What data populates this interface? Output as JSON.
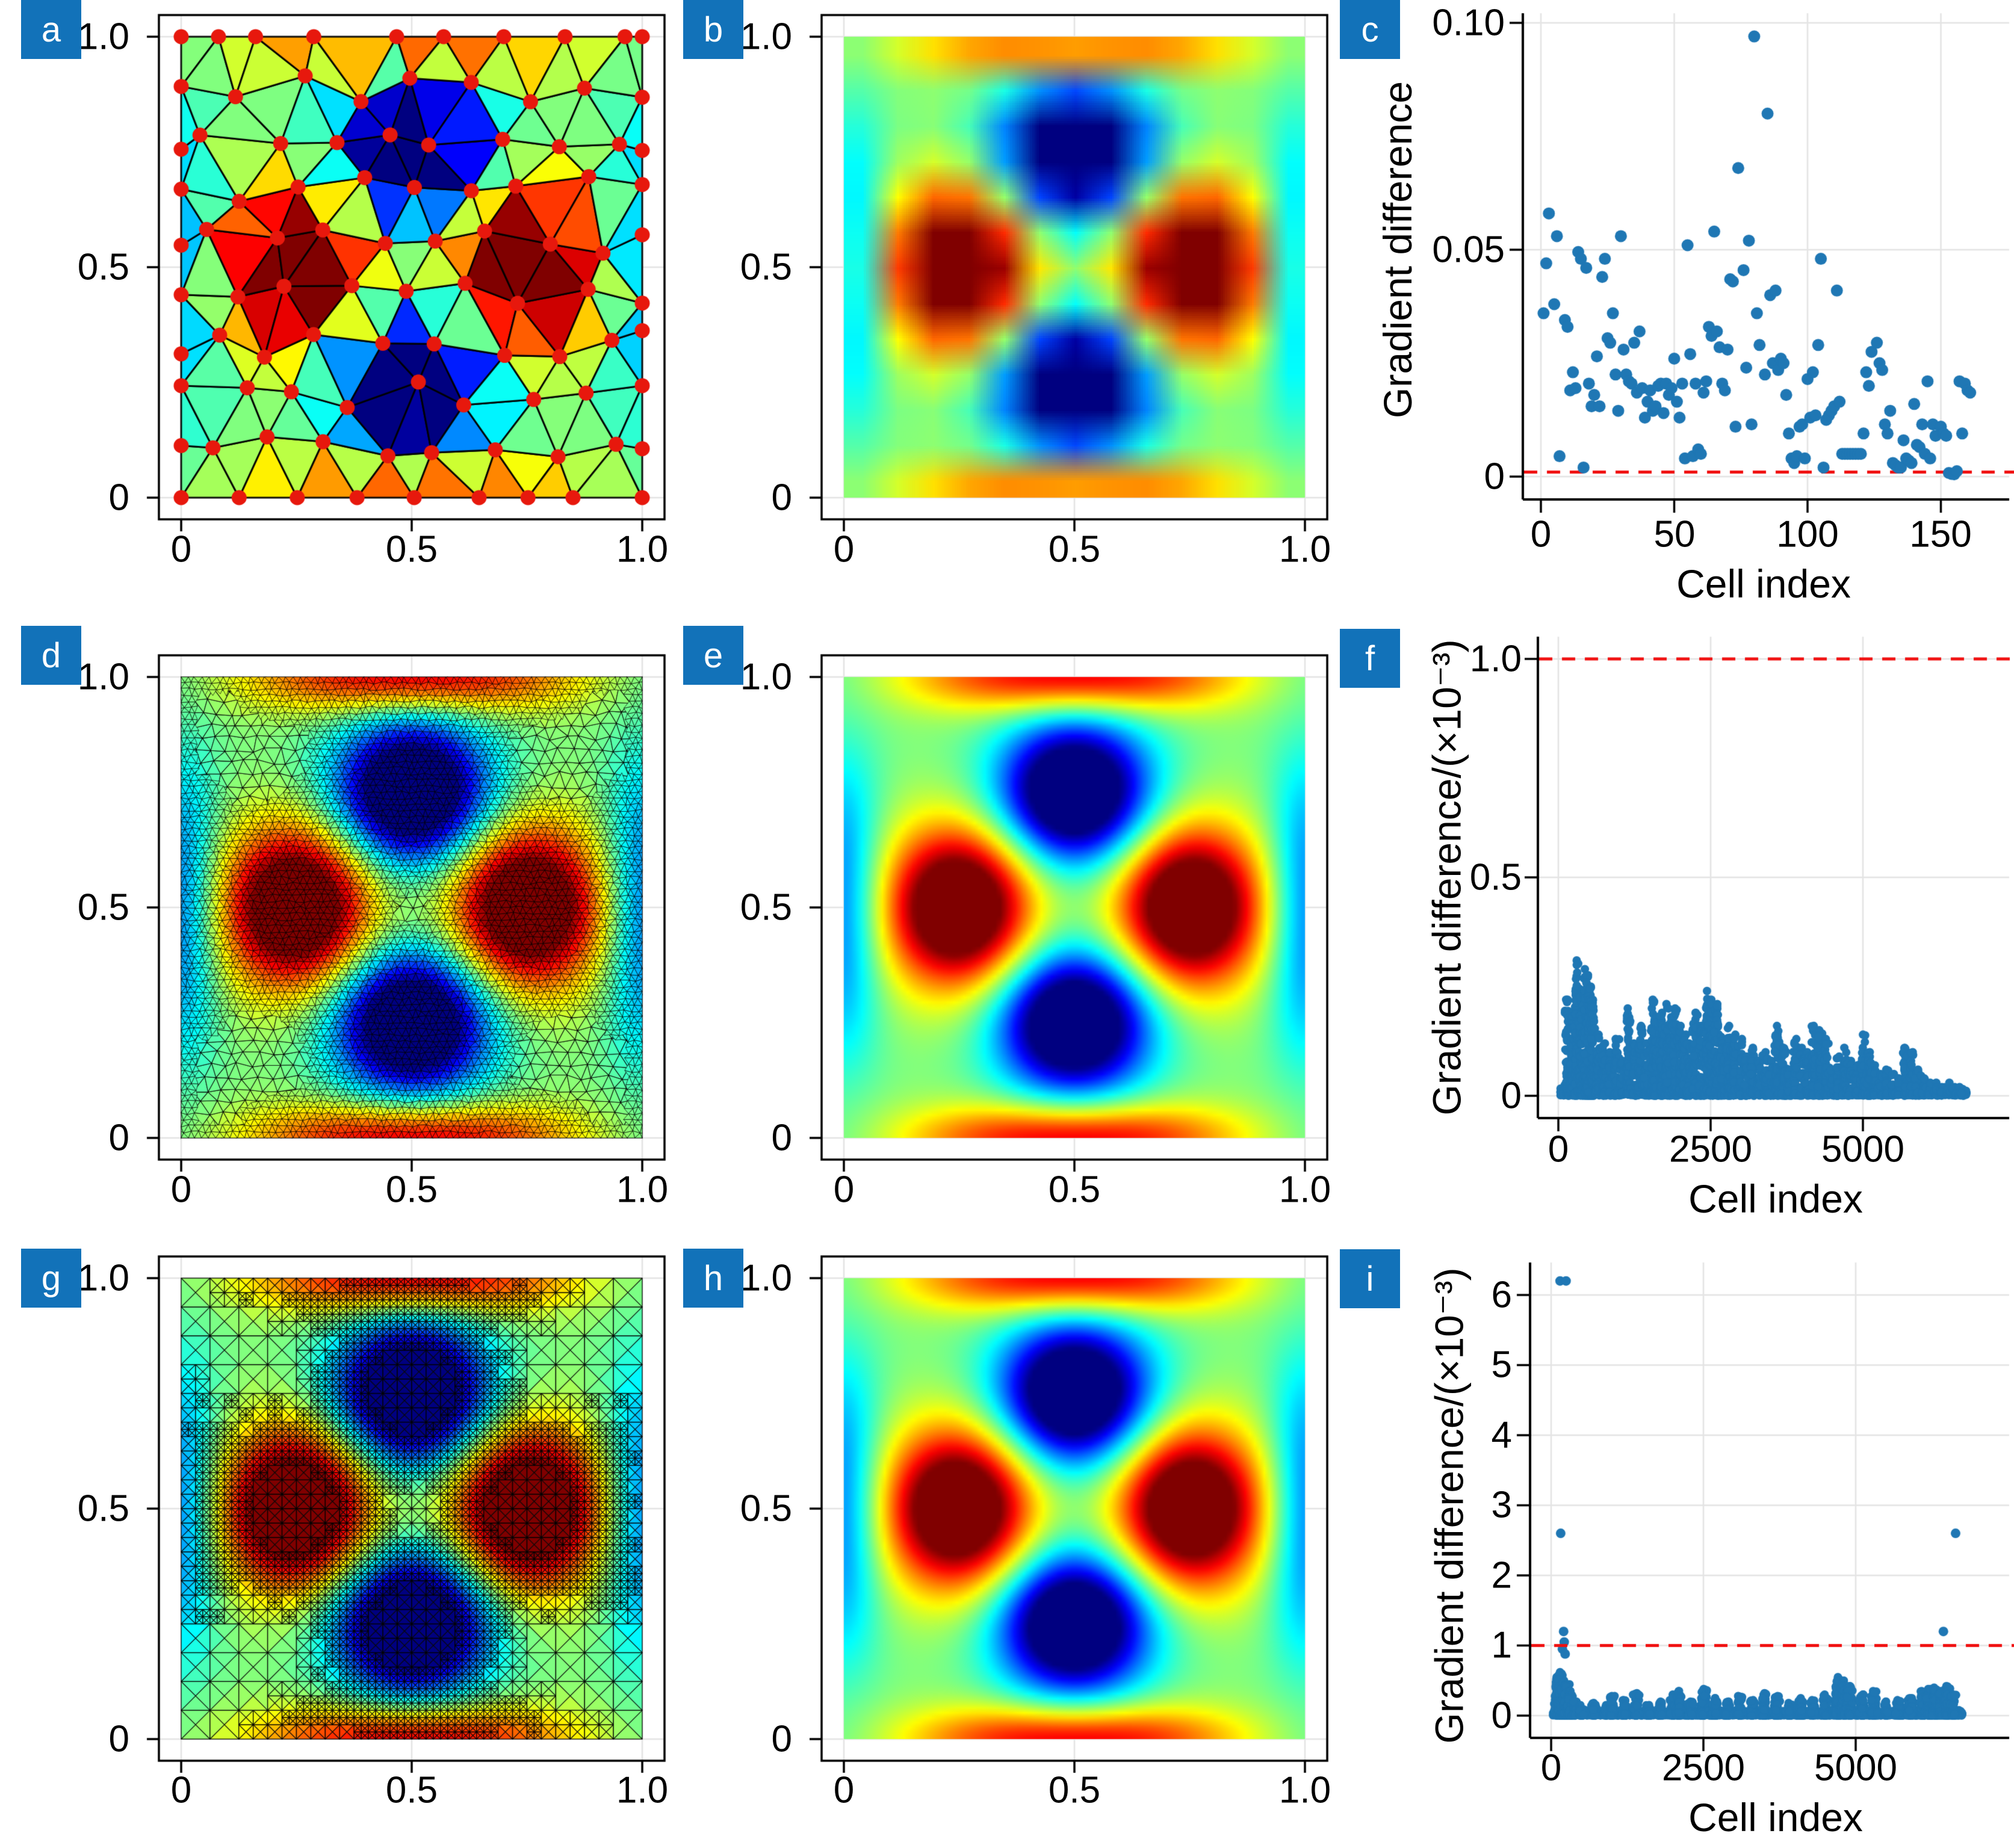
{
  "figure": {
    "panel_letter_bg": "#1272b9",
    "panel_letter_color": "#ffffff",
    "marker_color": "#1f77b4",
    "threshold_color": "#f01010",
    "colormap": "jet"
  },
  "chart_data": [
    {
      "id": "a",
      "panel_label": "a",
      "type": "heatmap",
      "subtype": "coarse-triangular-mesh-with-vertex-nodes",
      "field": "four-lobe pattern: red maxima at (0.25,0.5) and (0.75,0.5), blue minima at (0.5,0.25) and (0.5,0.75), warm bands along y=0 and y=1 edges",
      "colormap": "jet",
      "xlim": [
        0,
        1
      ],
      "ylim": [
        0,
        1
      ],
      "xticks": [
        "0",
        "0.5",
        "1.0"
      ],
      "yticks": [
        "1.0",
        "0.5",
        "0"
      ],
      "mesh": {
        "node_color": "#e7180d",
        "edge_color": "#000000",
        "approx_cells": 160,
        "vertex_dots": true
      }
    },
    {
      "id": "b",
      "panel_label": "b",
      "type": "heatmap",
      "subtype": "smooth-interpolated-coarse",
      "field": "same four-lobe pattern interpolated from coarse mesh",
      "colormap": "jet",
      "xlim": [
        0,
        1
      ],
      "ylim": [
        0,
        1
      ],
      "xticks": [
        "0",
        "0.5",
        "1.0"
      ],
      "yticks": [
        "1.0",
        "0.5",
        "0"
      ]
    },
    {
      "id": "c",
      "panel_label": "c",
      "type": "scatter",
      "xlabel": "Cell index",
      "ylabel": "Gradient difference",
      "xticks": [
        "0",
        "50",
        "100",
        "150"
      ],
      "yticks": [
        "0.10",
        "0.05",
        "0"
      ],
      "xlim": [
        0,
        165
      ],
      "ylim": [
        0,
        0.1
      ],
      "threshold": {
        "y": 0.001,
        "style": "dashed"
      },
      "points": [
        [
          1,
          0.036
        ],
        [
          2,
          0.047
        ],
        [
          3,
          0.058
        ],
        [
          5,
          0.038
        ],
        [
          6,
          0.053
        ],
        [
          7,
          0.0045
        ],
        [
          9,
          0.0345
        ],
        [
          10,
          0.033
        ],
        [
          11,
          0.019
        ],
        [
          12,
          0.023
        ],
        [
          13,
          0.0195
        ],
        [
          14,
          0.0495
        ],
        [
          15,
          0.048
        ],
        [
          16,
          0.002
        ],
        [
          17,
          0.046
        ],
        [
          18,
          0.0205
        ],
        [
          19,
          0.0155
        ],
        [
          20,
          0.018
        ],
        [
          21,
          0.0265
        ],
        [
          22,
          0.0155
        ],
        [
          23,
          0.044
        ],
        [
          24,
          0.048
        ],
        [
          25,
          0.0305
        ],
        [
          26,
          0.0295
        ],
        [
          27,
          0.036
        ],
        [
          28,
          0.0225
        ],
        [
          29,
          0.0145
        ],
        [
          30,
          0.053
        ],
        [
          31,
          0.028
        ],
        [
          32,
          0.0225
        ],
        [
          33,
          0.021
        ],
        [
          34,
          0.0205
        ],
        [
          35,
          0.0295
        ],
        [
          36,
          0.0185
        ],
        [
          37,
          0.032
        ],
        [
          38,
          0.0195
        ],
        [
          39,
          0.013
        ],
        [
          40,
          0.0165
        ],
        [
          41,
          0.019
        ],
        [
          42,
          0.0145
        ],
        [
          43,
          0.0155
        ],
        [
          44,
          0.02
        ],
        [
          45,
          0.0205
        ],
        [
          46,
          0.014
        ],
        [
          47,
          0.0205
        ],
        [
          48,
          0.018
        ],
        [
          49,
          0.0195
        ],
        [
          50,
          0.026
        ],
        [
          51,
          0.0165
        ],
        [
          52,
          0.013
        ],
        [
          53,
          0.0205
        ],
        [
          54,
          0.004
        ],
        [
          55,
          0.051
        ],
        [
          56,
          0.027
        ],
        [
          57,
          0.0045
        ],
        [
          58,
          0.0205
        ],
        [
          59,
          0.006
        ],
        [
          60,
          0.005
        ],
        [
          61,
          0.0185
        ],
        [
          62,
          0.021
        ],
        [
          63,
          0.033
        ],
        [
          64,
          0.031
        ],
        [
          65,
          0.054
        ],
        [
          66,
          0.032
        ],
        [
          67,
          0.0285
        ],
        [
          68,
          0.0205
        ],
        [
          69,
          0.019
        ],
        [
          70,
          0.028
        ],
        [
          71,
          0.0435
        ],
        [
          72,
          0.043
        ],
        [
          73,
          0.011
        ],
        [
          74,
          0.068
        ],
        [
          76,
          0.0455
        ],
        [
          77,
          0.024
        ],
        [
          78,
          0.052
        ],
        [
          79,
          0.0115
        ],
        [
          80,
          0.097
        ],
        [
          81,
          0.036
        ],
        [
          82,
          0.029
        ],
        [
          84,
          0.0225
        ],
        [
          85,
          0.08
        ],
        [
          86,
          0.04
        ],
        [
          87,
          0.025
        ],
        [
          88,
          0.041
        ],
        [
          89,
          0.0235
        ],
        [
          90,
          0.026
        ],
        [
          91,
          0.025
        ],
        [
          92,
          0.018
        ],
        [
          93,
          0.0095
        ],
        [
          94,
          0.004
        ],
        [
          95,
          0.003
        ],
        [
          96,
          0.0045
        ],
        [
          97,
          0.011
        ],
        [
          98,
          0.0115
        ],
        [
          99,
          0.004
        ],
        [
          100,
          0.0215
        ],
        [
          101,
          0.013
        ],
        [
          102,
          0.023
        ],
        [
          103,
          0.0135
        ],
        [
          104,
          0.029
        ],
        [
          105,
          0.048
        ],
        [
          106,
          0.002
        ],
        [
          107,
          0.0125
        ],
        [
          108,
          0.0135
        ],
        [
          109,
          0.0145
        ],
        [
          110,
          0.0155
        ],
        [
          111,
          0.041
        ],
        [
          112,
          0.0165
        ],
        [
          113,
          0.005
        ],
        [
          114,
          0.005
        ],
        [
          115,
          0.005
        ],
        [
          116,
          0.005
        ],
        [
          117,
          0.005
        ],
        [
          118,
          0.005
        ],
        [
          119,
          0.005
        ],
        [
          120,
          0.005
        ],
        [
          121,
          0.0095
        ],
        [
          122,
          0.023
        ],
        [
          123,
          0.02
        ],
        [
          124,
          0.0275
        ],
        [
          126,
          0.0295
        ],
        [
          127,
          0.025
        ],
        [
          128,
          0.0235
        ],
        [
          129,
          0.0115
        ],
        [
          130,
          0.0095
        ],
        [
          131,
          0.0145
        ],
        [
          132,
          0.003
        ],
        [
          133,
          0.0025
        ],
        [
          134,
          0.002
        ],
        [
          135,
          0.002
        ],
        [
          136,
          0.008
        ],
        [
          137,
          0.004
        ],
        [
          138,
          0.0035
        ],
        [
          139,
          0.003
        ],
        [
          140,
          0.016
        ],
        [
          141,
          0.007
        ],
        [
          142,
          0.0065
        ],
        [
          143,
          0.0115
        ],
        [
          144,
          0.005
        ],
        [
          145,
          0.021
        ],
        [
          146,
          0.004
        ],
        [
          147,
          0.0115
        ],
        [
          148,
          0.009
        ],
        [
          150,
          0.011
        ],
        [
          151,
          0.0095
        ],
        [
          152,
          0.009
        ],
        [
          153,
          0.0008
        ],
        [
          154,
          0.0006
        ],
        [
          155,
          0.0005
        ],
        [
          156,
          0.0012
        ],
        [
          157,
          0.021
        ],
        [
          158,
          0.0095
        ],
        [
          159,
          0.0205
        ],
        [
          160,
          0.019
        ],
        [
          161,
          0.0185
        ]
      ]
    },
    {
      "id": "d",
      "panel_label": "d",
      "type": "heatmap",
      "subtype": "fine-adaptive-triangular-mesh",
      "field": "same four-lobe pattern on refined triangulation, densest near lobes and domain boundary",
      "colormap": "jet",
      "xlim": [
        0,
        1
      ],
      "ylim": [
        0,
        1
      ],
      "xticks": [
        "0",
        "0.5",
        "1.0"
      ],
      "yticks": [
        "1.0",
        "0.5",
        "0"
      ]
    },
    {
      "id": "e",
      "panel_label": "e",
      "type": "heatmap",
      "subtype": "smooth-interpolated-fine",
      "field": "same four-lobe pattern, smooth",
      "colormap": "jet",
      "xlim": [
        0,
        1
      ],
      "ylim": [
        0,
        1
      ],
      "xticks": [
        "0",
        "0.5",
        "1.0"
      ],
      "yticks": [
        "1.0",
        "0.5",
        "0"
      ]
    },
    {
      "id": "f",
      "panel_label": "f",
      "type": "scatter",
      "xlabel": "Cell index",
      "ylabel": "Gradient difference/(×10⁻³)",
      "xticks": [
        "0",
        "2500",
        "5000"
      ],
      "yticks": [
        "1.0",
        "0.5",
        "0"
      ],
      "xlim": [
        0,
        6700
      ],
      "ylim": [
        0,
        1.0
      ],
      "threshold": {
        "y": 1.0,
        "style": "dashed"
      },
      "columns": [
        [
          150,
          0.22
        ],
        [
          230,
          0.19
        ],
        [
          300,
          0.31
        ],
        [
          380,
          0.24
        ],
        [
          450,
          0.29
        ],
        [
          520,
          0.25
        ],
        [
          560,
          0.22
        ],
        [
          650,
          0.14
        ],
        [
          750,
          0.12
        ],
        [
          850,
          0.1
        ],
        [
          950,
          0.13
        ],
        [
          1050,
          0.08
        ],
        [
          1150,
          0.2
        ],
        [
          1250,
          0.12
        ],
        [
          1350,
          0.16
        ],
        [
          1450,
          0.12
        ],
        [
          1550,
          0.22
        ],
        [
          1620,
          0.18
        ],
        [
          1700,
          0.19
        ],
        [
          1780,
          0.21
        ],
        [
          1850,
          0.18
        ],
        [
          1930,
          0.2
        ],
        [
          2000,
          0.16
        ],
        [
          2080,
          0.14
        ],
        [
          2150,
          0.12
        ],
        [
          2250,
          0.19
        ],
        [
          2350,
          0.16
        ],
        [
          2450,
          0.24
        ],
        [
          2520,
          0.22
        ],
        [
          2600,
          0.21
        ],
        [
          2700,
          0.13
        ],
        [
          2800,
          0.16
        ],
        [
          2900,
          0.14
        ],
        [
          3000,
          0.13
        ],
        [
          3100,
          0.09
        ],
        [
          3200,
          0.11
        ],
        [
          3300,
          0.08
        ],
        [
          3400,
          0.1
        ],
        [
          3500,
          0.08
        ],
        [
          3600,
          0.16
        ],
        [
          3700,
          0.11
        ],
        [
          3800,
          0.06
        ],
        [
          3900,
          0.13
        ],
        [
          4000,
          0.11
        ],
        [
          4100,
          0.1
        ],
        [
          4200,
          0.16
        ],
        [
          4300,
          0.15
        ],
        [
          4400,
          0.13
        ],
        [
          4500,
          0.06
        ],
        [
          4600,
          0.09
        ],
        [
          4700,
          0.11
        ],
        [
          4800,
          0.08
        ],
        [
          4900,
          0.07
        ],
        [
          5000,
          0.14
        ],
        [
          5100,
          0.1
        ],
        [
          5200,
          0.07
        ],
        [
          5300,
          0.05
        ],
        [
          5400,
          0.06
        ],
        [
          5500,
          0.05
        ],
        [
          5600,
          0.04
        ],
        [
          5700,
          0.11
        ],
        [
          5800,
          0.1
        ],
        [
          5900,
          0.06
        ],
        [
          6000,
          0.04
        ],
        [
          6100,
          0.03
        ],
        [
          6200,
          0.03
        ],
        [
          6300,
          0.02
        ],
        [
          6400,
          0.03
        ],
        [
          6500,
          0.02
        ],
        [
          6600,
          0.02
        ]
      ],
      "baseline": {
        "n": 2200,
        "x_range": [
          30,
          6700
        ],
        "y_typical": 0.013
      }
    },
    {
      "id": "g",
      "panel_label": "g",
      "type": "heatmap",
      "subtype": "quadtree-triangulated-mesh",
      "field": "same four-lobe pattern on quadtree refined squares split into triangles",
      "colormap": "jet",
      "xlim": [
        0,
        1
      ],
      "ylim": [
        0,
        1
      ],
      "xticks": [
        "0",
        "0.5",
        "1.0"
      ],
      "yticks": [
        "1.0",
        "0.5",
        "0"
      ]
    },
    {
      "id": "h",
      "panel_label": "h",
      "type": "heatmap",
      "subtype": "smooth-interpolated-fine",
      "field": "same four-lobe pattern, smooth",
      "colormap": "jet",
      "xlim": [
        0,
        1
      ],
      "ylim": [
        0,
        1
      ],
      "xticks": [
        "0",
        "0.5",
        "1.0"
      ],
      "yticks": [
        "1.0",
        "0.5",
        "0"
      ]
    },
    {
      "id": "i",
      "panel_label": "i",
      "type": "scatter",
      "xlabel": "Cell index",
      "ylabel": "Gradient difference/(×10⁻³)",
      "xticks": [
        "0",
        "2500",
        "5000"
      ],
      "yticks": [
        "6",
        "5",
        "4",
        "3",
        "2",
        "1",
        "0"
      ],
      "xlim": [
        0,
        6700
      ],
      "ylim": [
        0,
        6.4
      ],
      "threshold": {
        "y": 1.0,
        "style": "dashed"
      },
      "outliers": [
        [
          147,
          6.2
        ],
        [
          245,
          6.2
        ],
        [
          157,
          2.6
        ],
        [
          6640,
          2.6
        ],
        [
          205,
          1.2
        ],
        [
          6440,
          1.2
        ],
        [
          215,
          1.05
        ],
        [
          185,
          0.95
        ],
        [
          230,
          0.88
        ]
      ],
      "columns": [
        [
          100,
          0.55
        ],
        [
          150,
          0.62
        ],
        [
          200,
          0.5
        ],
        [
          250,
          0.45
        ],
        [
          300,
          0.35
        ],
        [
          400,
          0.2
        ],
        [
          500,
          0.15
        ],
        [
          700,
          0.18
        ],
        [
          900,
          0.15
        ],
        [
          1000,
          0.28
        ],
        [
          1200,
          0.22
        ],
        [
          1400,
          0.32
        ],
        [
          1600,
          0.15
        ],
        [
          1800,
          0.2
        ],
        [
          2000,
          0.3
        ],
        [
          2100,
          0.35
        ],
        [
          2300,
          0.2
        ],
        [
          2500,
          0.38
        ],
        [
          2700,
          0.25
        ],
        [
          2900,
          0.2
        ],
        [
          3100,
          0.28
        ],
        [
          3300,
          0.22
        ],
        [
          3500,
          0.32
        ],
        [
          3700,
          0.28
        ],
        [
          3900,
          0.18
        ],
        [
          4100,
          0.25
        ],
        [
          4300,
          0.22
        ],
        [
          4500,
          0.3
        ],
        [
          4700,
          0.55
        ],
        [
          4800,
          0.5
        ],
        [
          4900,
          0.42
        ],
        [
          5100,
          0.3
        ],
        [
          5300,
          0.35
        ],
        [
          5500,
          0.2
        ],
        [
          5700,
          0.22
        ],
        [
          5900,
          0.25
        ],
        [
          6100,
          0.35
        ],
        [
          6200,
          0.38
        ],
        [
          6300,
          0.4
        ],
        [
          6400,
          0.35
        ],
        [
          6500,
          0.42
        ],
        [
          6600,
          0.3
        ]
      ],
      "baseline": {
        "n": 3200,
        "x_range": [
          30,
          6750
        ],
        "y_typical": 0.06
      }
    }
  ]
}
